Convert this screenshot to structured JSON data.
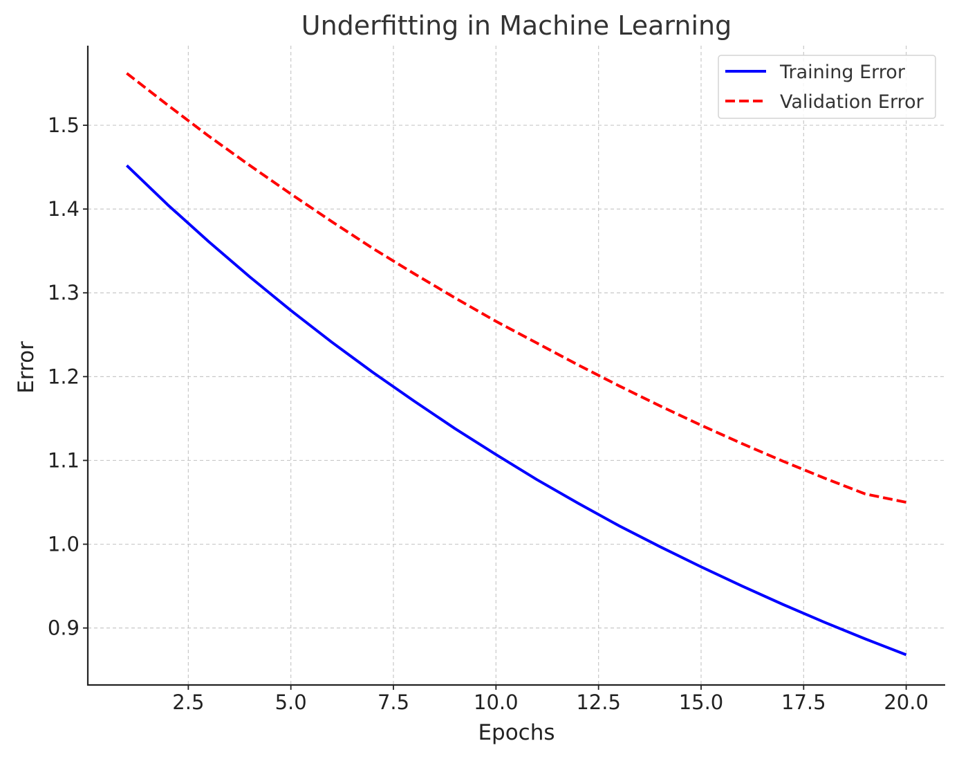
{
  "chart_data": {
    "type": "line",
    "title": "Underfitting in Machine Learning",
    "xlabel": "Epochs",
    "ylabel": "Error",
    "xlim": [
      0.05,
      20.95
    ],
    "ylim": [
      0.832,
      1.595
    ],
    "xticks": [
      2.5,
      5.0,
      7.5,
      10.0,
      12.5,
      15.0,
      17.5,
      20.0
    ],
    "xtick_labels": [
      "2.5",
      "5.0",
      "7.5",
      "10.0",
      "12.5",
      "15.0",
      "17.5",
      "20.0"
    ],
    "yticks": [
      0.9,
      1.0,
      1.1,
      1.2,
      1.3,
      1.4,
      1.5
    ],
    "ytick_labels": [
      "0.9",
      "1.0",
      "1.1",
      "1.2",
      "1.3",
      "1.4",
      "1.5"
    ],
    "grid": true,
    "legend_position": "top-right",
    "x": [
      1,
      2,
      3,
      4,
      5,
      6,
      7,
      8,
      9,
      10,
      11,
      12,
      13,
      14,
      15,
      16,
      17,
      18,
      19,
      20
    ],
    "series": [
      {
        "name": "Training Error",
        "color": "#0000ff",
        "style": "solid",
        "values": [
          1.452,
          1.405,
          1.361,
          1.319,
          1.279,
          1.241,
          1.205,
          1.171,
          1.138,
          1.107,
          1.077,
          1.049,
          1.022,
          0.997,
          0.973,
          0.95,
          0.928,
          0.907,
          0.887,
          0.868
        ]
      },
      {
        "name": "Validation Error",
        "color": "#ff0000",
        "style": "dashed",
        "values": [
          1.562,
          1.524,
          1.487,
          1.452,
          1.418,
          1.385,
          1.353,
          1.323,
          1.294,
          1.266,
          1.24,
          1.214,
          1.189,
          1.165,
          1.142,
          1.12,
          1.099,
          1.079,
          1.06,
          1.05
        ]
      }
    ]
  }
}
